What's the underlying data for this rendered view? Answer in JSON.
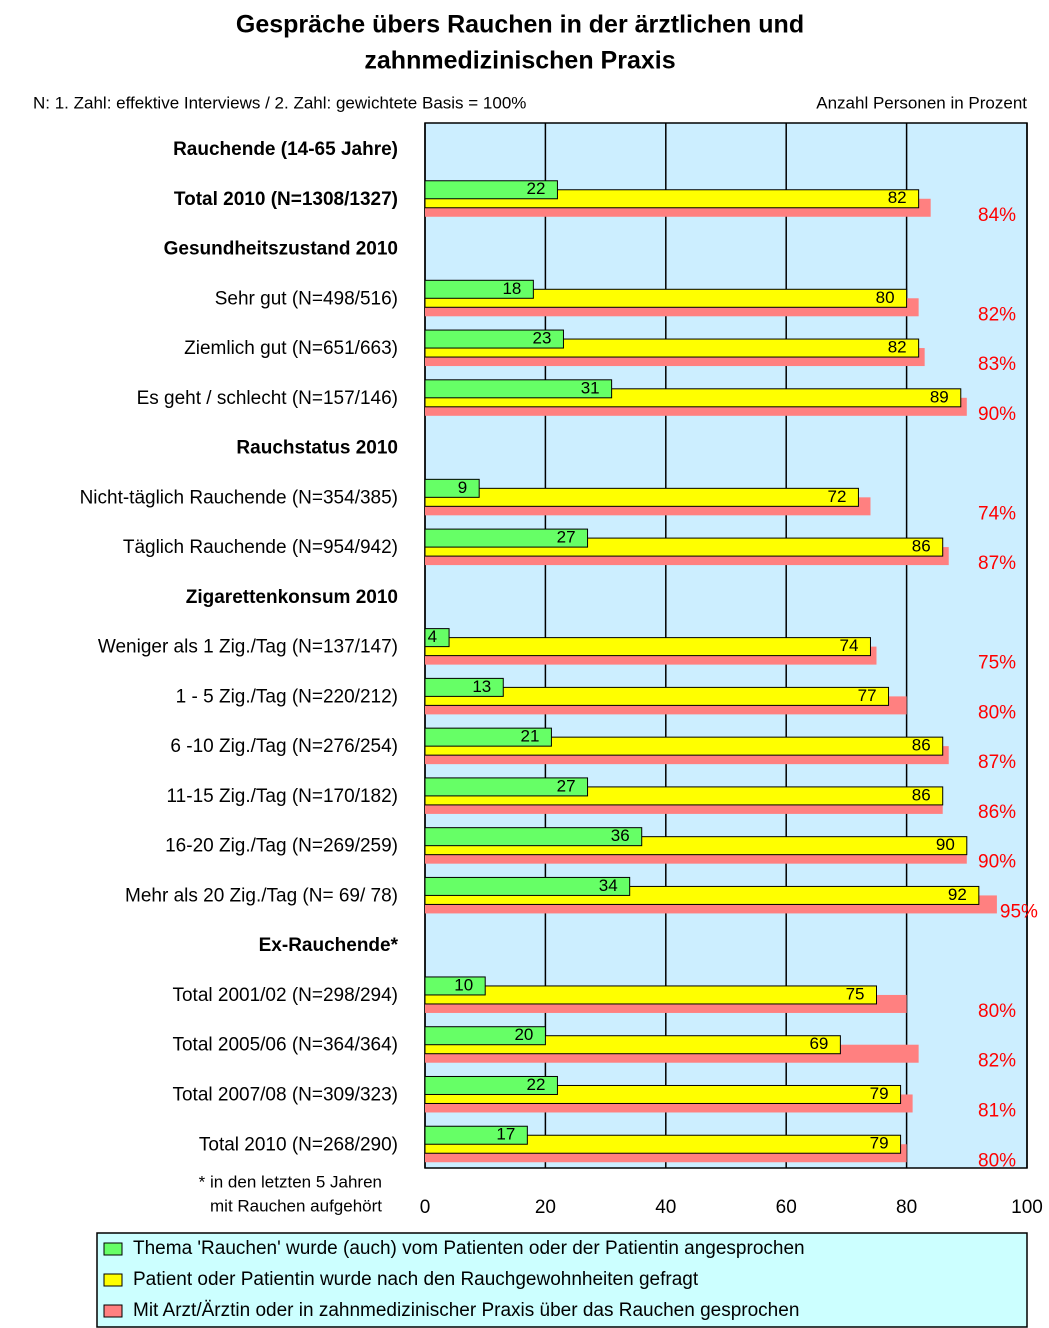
{
  "chart_data": {
    "type": "hbar",
    "title": [
      "Gespräche übers Rauchen in der ärztlichen und",
      "zahnmedizinischen Praxis"
    ],
    "subtitle": "N: 1. Zahl: effektive Interviews / 2. Zahl: gewichtete Basis = 100%",
    "axis_note": "Anzahl Personen in Prozent",
    "footnote": [
      "* in den letzten 5 Jahren",
      "mit Rauchen aufgehört"
    ],
    "categories": [
      "Rauchende (14-65 Jahre)",
      "Total 2010 (N=1308/1327)",
      "Gesundheitszustand 2010",
      "Sehr gut (N=498/516)",
      "Ziemlich gut (N=651/663)",
      "Es geht / schlecht (N=157/146)",
      "Rauchstatus 2010",
      "Nicht-täglich Rauchende (N=354/385)",
      "Täglich Rauchende (N=954/942)",
      "Zigarettenkonsum 2010",
      "Weniger als 1 Zig./Tag (N=137/147)",
      "1 - 5 Zig./Tag (N=220/212)",
      "6 -10 Zig./Tag (N=276/254)",
      "11-15 Zig./Tag (N=170/182)",
      "16-20 Zig./Tag (N=269/259)",
      "Mehr als 20 Zig./Tag (N=  69/  78)",
      "Ex-Rauchende*",
      "Total 2001/02 (N=298/294)",
      "Total 2005/06 (N=364/364)",
      "Total 2007/08 (N=309/323)",
      "Total 2010 (N=268/290)"
    ],
    "category_bold": [
      true,
      true,
      true,
      false,
      false,
      false,
      true,
      false,
      false,
      true,
      false,
      false,
      false,
      false,
      false,
      false,
      true,
      false,
      false,
      false,
      false
    ],
    "series": [
      {
        "name": "Thema 'Rauchen' wurde (auch) vom Patienten oder der Patientin angesprochen",
        "color": "#66ff66",
        "values": [
          null,
          22,
          null,
          18,
          23,
          31,
          null,
          9,
          27,
          null,
          4,
          13,
          21,
          27,
          36,
          34,
          null,
          10,
          20,
          22,
          17
        ]
      },
      {
        "name": "Patient oder Patientin wurde nach den Rauchgewohnheiten gefragt",
        "color": "#ffff00",
        "values": [
          null,
          82,
          null,
          80,
          82,
          89,
          null,
          72,
          86,
          null,
          74,
          77,
          86,
          86,
          90,
          92,
          null,
          75,
          69,
          79,
          79
        ]
      },
      {
        "name": "Mit Arzt/Ärztin oder in zahnmedizinischer Praxis über das Rauchen gesprochen",
        "color": "#ff8080",
        "values": [
          null,
          84,
          null,
          82,
          83,
          90,
          null,
          74,
          87,
          null,
          75,
          80,
          87,
          86,
          90,
          95,
          null,
          80,
          82,
          81,
          80
        ],
        "value_labels": [
          null,
          "84%",
          null,
          "82%",
          "83%",
          "90%",
          null,
          "74%",
          "87%",
          null,
          "75%",
          "80%",
          "87%",
          "86%",
          "90%",
          "95%",
          null,
          "80%",
          "82%",
          "81%",
          "80%"
        ]
      }
    ],
    "xlim": [
      0,
      100
    ],
    "xticks": [
      0,
      20,
      40,
      60,
      80,
      100
    ],
    "grid": true
  }
}
